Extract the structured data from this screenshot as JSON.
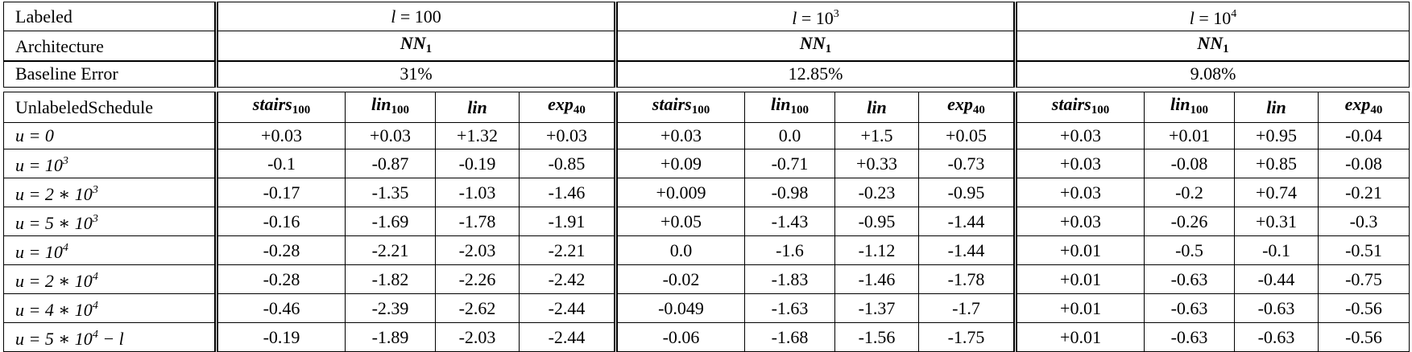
{
  "header": {
    "labeled_label": "Labeled",
    "labeled": [
      "l = 100",
      "l = 10^3",
      "l = 10^4"
    ],
    "architecture_label": "Architecture",
    "architecture": [
      "NN_1",
      "NN_1",
      "NN_1"
    ]
  },
  "baseline": {
    "label": "Baseline Error",
    "values": [
      "31%",
      "12.85%",
      "9.08%"
    ]
  },
  "schedule": {
    "label": "UnlabeledSchedule",
    "columns": [
      "stairs_100",
      "lin_100",
      "lin",
      "exp_40",
      "stairs_100",
      "lin_100",
      "lin",
      "exp_40",
      "stairs_100",
      "lin_100",
      "lin",
      "exp_40"
    ]
  },
  "rows": [
    {
      "u": "u = 0",
      "values": [
        "+0.03",
        "+0.03",
        "+1.32",
        "+0.03",
        "+0.03",
        "0.0",
        "+1.5",
        "+0.05",
        "+0.03",
        "+0.01",
        "+0.95",
        "-0.04"
      ]
    },
    {
      "u": "u = 10^3",
      "values": [
        "-0.1",
        "-0.87",
        "-0.19",
        "-0.85",
        "+0.09",
        "-0.71",
        "+0.33",
        "-0.73",
        "+0.03",
        "-0.08",
        "+0.85",
        "-0.08"
      ]
    },
    {
      "u": "u = 2 * 10^3",
      "values": [
        "-0.17",
        "-1.35",
        "-1.03",
        "-1.46",
        "+0.009",
        "-0.98",
        "-0.23",
        "-0.95",
        "+0.03",
        "-0.2",
        "+0.74",
        "-0.21"
      ]
    },
    {
      "u": "u = 5 * 10^3",
      "values": [
        "-0.16",
        "-1.69",
        "-1.78",
        "-1.91",
        "+0.05",
        "-1.43",
        "-0.95",
        "-1.44",
        "+0.03",
        "-0.26",
        "+0.31",
        "-0.3"
      ]
    },
    {
      "u": "u = 10^4",
      "values": [
        "-0.28",
        "-2.21",
        "-2.03",
        "-2.21",
        "0.0",
        "-1.6",
        "-1.12",
        "-1.44",
        "+0.01",
        "-0.5",
        "-0.1",
        "-0.51"
      ]
    },
    {
      "u": "u = 2 * 10^4",
      "values": [
        "-0.28",
        "-1.82",
        "-2.26",
        "-2.42",
        "-0.02",
        "-1.83",
        "-1.46",
        "-1.78",
        "+0.01",
        "-0.63",
        "-0.44",
        "-0.75"
      ]
    },
    {
      "u": "u = 4 * 10^4",
      "values": [
        "-0.46",
        "-2.39",
        "-2.62",
        "-2.44",
        "-0.049",
        "-1.63",
        "-1.37",
        "-1.7",
        "+0.01",
        "-0.63",
        "-0.63",
        "-0.56"
      ]
    },
    {
      "u": "u = 5 * 10^4 - l",
      "values": [
        "-0.19",
        "-1.89",
        "-2.03",
        "-2.44",
        "-0.06",
        "-1.68",
        "-1.56",
        "-1.75",
        "+0.01",
        "-0.63",
        "-0.63",
        "-0.56"
      ]
    }
  ]
}
